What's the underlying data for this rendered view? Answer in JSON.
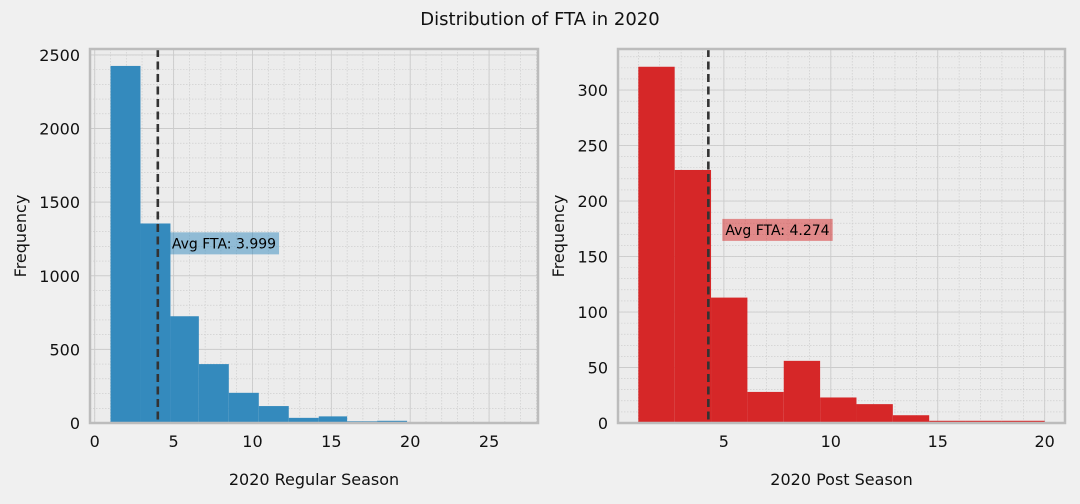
{
  "title": "Distribution of FTA in 2020",
  "chart_data": [
    {
      "type": "histogram",
      "xlabel": "2020 Regular Season",
      "ylabel": "Frequency",
      "color": "#348ABD",
      "xlim": [
        -0.3,
        28.1
      ],
      "ylim": [
        0,
        2540
      ],
      "xticks": [
        0,
        5,
        10,
        15,
        20,
        25
      ],
      "yticks": [
        0,
        500,
        1000,
        1500,
        2000,
        2500
      ],
      "bins": [
        {
          "x0": 1.0,
          "x1": 2.9,
          "value": 2425
        },
        {
          "x0": 2.9,
          "x1": 4.8,
          "value": 1355
        },
        {
          "x0": 4.8,
          "x1": 6.6,
          "value": 725
        },
        {
          "x0": 6.6,
          "x1": 8.5,
          "value": 400
        },
        {
          "x0": 8.5,
          "x1": 10.4,
          "value": 205
        },
        {
          "x0": 10.4,
          "x1": 12.3,
          "value": 115
        },
        {
          "x0": 12.3,
          "x1": 14.2,
          "value": 35
        },
        {
          "x0": 14.2,
          "x1": 16.0,
          "value": 45
        },
        {
          "x0": 16.0,
          "x1": 17.9,
          "value": 12
        },
        {
          "x0": 17.9,
          "x1": 19.8,
          "value": 15
        },
        {
          "x0": 19.8,
          "x1": 21.7,
          "value": 4
        },
        {
          "x0": 21.7,
          "x1": 23.6,
          "value": 3
        },
        {
          "x0": 23.6,
          "x1": 25.4,
          "value": 2
        },
        {
          "x0": 25.4,
          "x1": 27.3,
          "value": 2
        }
      ],
      "mean": 3.999,
      "mean_label": "Avg FTA: 3.999",
      "mean_label_y": 1220
    },
    {
      "type": "histogram",
      "xlabel": "2020 Post Season",
      "ylabel": "Frequency",
      "color": "#D62728",
      "xlim": [
        0.05,
        20.95
      ],
      "ylim": [
        0,
        337
      ],
      "xticks": [
        5,
        10,
        15,
        20
      ],
      "yticks": [
        0,
        50,
        100,
        150,
        200,
        250,
        300
      ],
      "bins": [
        {
          "x0": 1.0,
          "x1": 2.7,
          "value": 321
        },
        {
          "x0": 2.7,
          "x1": 4.4,
          "value": 228
        },
        {
          "x0": 4.4,
          "x1": 6.1,
          "value": 113
        },
        {
          "x0": 6.1,
          "x1": 7.8,
          "value": 28
        },
        {
          "x0": 7.8,
          "x1": 9.5,
          "value": 56
        },
        {
          "x0": 9.5,
          "x1": 11.2,
          "value": 23
        },
        {
          "x0": 11.2,
          "x1": 12.9,
          "value": 17
        },
        {
          "x0": 12.9,
          "x1": 14.6,
          "value": 7
        },
        {
          "x0": 14.6,
          "x1": 16.3,
          "value": 2
        },
        {
          "x0": 16.3,
          "x1": 18.0,
          "value": 2
        },
        {
          "x0": 18.0,
          "x1": 20.0,
          "value": 2
        }
      ],
      "mean": 4.274,
      "mean_label": "Avg FTA: 4.274",
      "mean_label_y": 174
    }
  ]
}
